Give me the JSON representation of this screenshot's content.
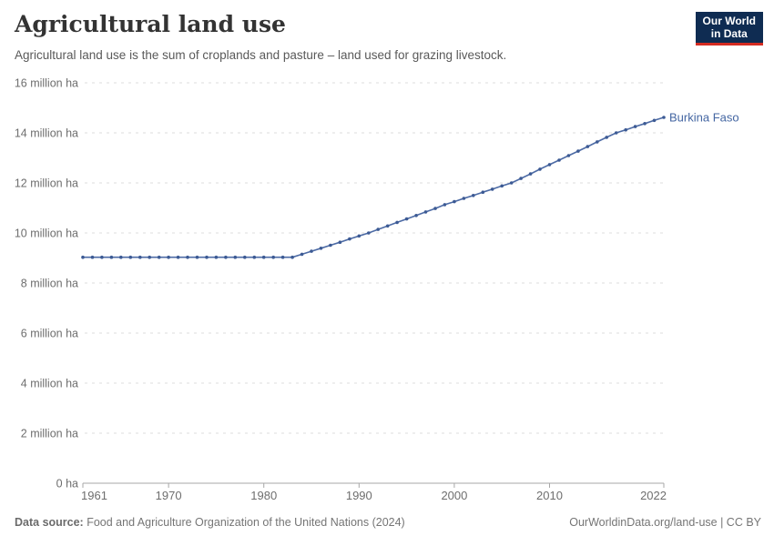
{
  "header": {
    "title": "Agricultural land use",
    "subtitle": "Agricultural land use is the sum of croplands and pasture – land used for grazing livestock.",
    "logo": {
      "line1": "Our World",
      "line2": "in Data"
    }
  },
  "footer": {
    "source_label": "Data source:",
    "source_text": " Food and Agriculture Organization of the United Nations (2024)",
    "attribution": "OurWorldinData.org/land-use | CC BY"
  },
  "colors": {
    "line": "#4d6ba5",
    "dot": "#3c5a94",
    "entity_label": "#4466a2",
    "grid": "#dcdcdc",
    "axis": "#a7a7a7",
    "tick_label": "#6e6e6e",
    "title": "#333333",
    "subtitle": "#595959",
    "footer_text": "#757575",
    "logo_bg": "#0f2c52",
    "logo_accent": "#d42b21"
  },
  "chart_data": {
    "type": "line",
    "title": "Agricultural land use",
    "unit": "million ha",
    "xlim": [
      1961,
      2022
    ],
    "ylim": [
      0,
      16
    ],
    "grid": "horizontal-dashed",
    "legend_position": "end-of-line-label",
    "x_ticks": [
      1961,
      1970,
      1980,
      1990,
      2000,
      2010,
      2022
    ],
    "y_ticks": [
      {
        "value": 0,
        "label": "0 ha"
      },
      {
        "value": 2,
        "label": "2 million ha"
      },
      {
        "value": 4,
        "label": "4 million ha"
      },
      {
        "value": 6,
        "label": "6 million ha"
      },
      {
        "value": 8,
        "label": "8 million ha"
      },
      {
        "value": 10,
        "label": "10 million ha"
      },
      {
        "value": 12,
        "label": "12 million ha"
      },
      {
        "value": 14,
        "label": "14 million ha"
      },
      {
        "value": 16,
        "label": "16 million ha"
      }
    ],
    "x": [
      1961,
      1962,
      1963,
      1964,
      1965,
      1966,
      1967,
      1968,
      1969,
      1970,
      1971,
      1972,
      1973,
      1974,
      1975,
      1976,
      1977,
      1978,
      1979,
      1980,
      1981,
      1982,
      1983,
      1984,
      1985,
      1986,
      1987,
      1988,
      1989,
      1990,
      1991,
      1992,
      1993,
      1994,
      1995,
      1996,
      1997,
      1998,
      1999,
      2000,
      2001,
      2002,
      2003,
      2004,
      2005,
      2006,
      2007,
      2008,
      2009,
      2010,
      2011,
      2012,
      2013,
      2014,
      2015,
      2016,
      2017,
      2018,
      2019,
      2020,
      2021,
      2022
    ],
    "series": [
      {
        "name": "Burkina Faso",
        "values": [
          9.03,
          9.03,
          9.03,
          9.03,
          9.03,
          9.03,
          9.03,
          9.03,
          9.03,
          9.03,
          9.03,
          9.03,
          9.03,
          9.03,
          9.03,
          9.03,
          9.03,
          9.03,
          9.03,
          9.03,
          9.03,
          9.03,
          9.03,
          9.15,
          9.27,
          9.39,
          9.51,
          9.63,
          9.76,
          9.88,
          10.0,
          10.14,
          10.28,
          10.42,
          10.56,
          10.7,
          10.84,
          10.98,
          11.13,
          11.25,
          11.38,
          11.5,
          11.63,
          11.75,
          11.88,
          12.0,
          12.18,
          12.36,
          12.55,
          12.73,
          12.91,
          13.09,
          13.27,
          13.45,
          13.64,
          13.82,
          14.0,
          14.12,
          14.25,
          14.37,
          14.5,
          14.62
        ]
      }
    ]
  }
}
